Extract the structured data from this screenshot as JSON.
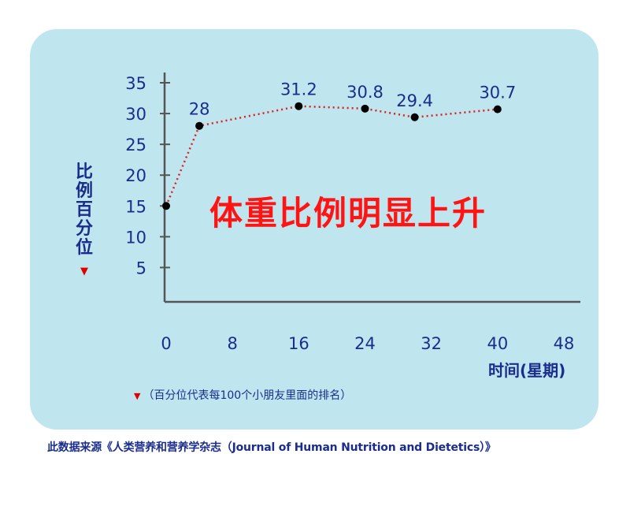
{
  "chart_data": {
    "type": "line",
    "title": "体重比例明显上升",
    "ylabel": "比例百分位",
    "xlabel": "时间(星期)",
    "x": [
      0,
      4,
      16,
      24,
      30,
      40
    ],
    "values": [
      15,
      28,
      31.2,
      30.8,
      29.4,
      30.7
    ],
    "data_labels": [
      "",
      "28",
      "31.2",
      "30.8",
      "29.4",
      "30.7"
    ],
    "xticks": [
      "0",
      "8",
      "16",
      "24",
      "32",
      "40",
      "48"
    ],
    "yticks": [
      "5",
      "10",
      "15",
      "20",
      "25",
      "30",
      "35"
    ],
    "xlim": [
      0,
      48
    ],
    "ylim": [
      0,
      35
    ],
    "grid": false,
    "colors": {
      "line": "#e01e1e",
      "marker": "#000000",
      "text": "#1a2d8c",
      "background": "#bfe5ef",
      "axis": "#555555"
    }
  },
  "note": {
    "marker": "▼",
    "text": "（百分位代表每100个小朋友里面的排名）"
  },
  "ylabel_marker": "▼",
  "source": "此数据来源《人类营养和营养学杂志（Journal of Human Nutrition and Dietetics）》"
}
